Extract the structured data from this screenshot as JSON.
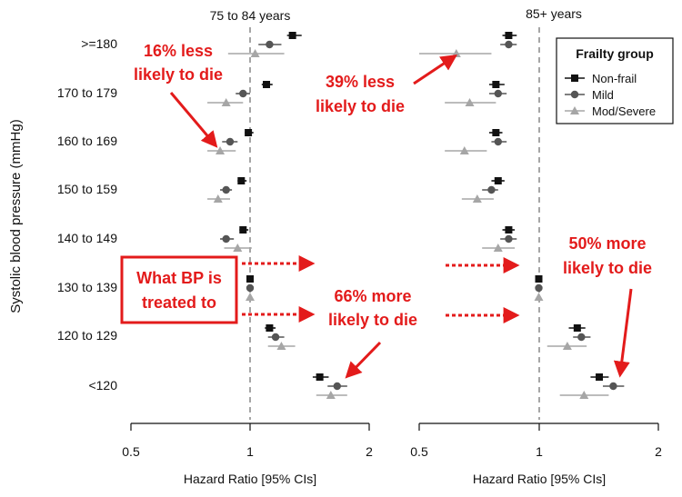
{
  "chart_data": {
    "type": "forest",
    "ylabel": "Systolic blood pressure (mmHg)",
    "categories": [
      ">=180",
      "170 to 179",
      "160 to 169",
      "150 to 159",
      "140 to 149",
      "130 to 139",
      "120 to 129",
      "<120"
    ],
    "x_scale": "log",
    "xlim": [
      0.5,
      2
    ],
    "x_ticks": [
      "0.5",
      "1",
      "2"
    ],
    "reference_line": 1,
    "legend": {
      "title": "Frailty group",
      "position": "top-right",
      "entries": [
        {
          "name": "Non-frail",
          "color": "#111111",
          "marker": "square"
        },
        {
          "name": "Mild",
          "color": "#555555",
          "marker": "circle"
        },
        {
          "name": "Mod/Severe",
          "color": "#a6a6a6",
          "marker": "triangle"
        }
      ]
    },
    "panels": [
      {
        "title": "75 to 84 years",
        "xlabel": "Hazard Ratio [95% CIs]",
        "series": [
          {
            "name": "Non-frail",
            "values": [
              1.28,
              1.1,
              0.99,
              0.95,
              0.96,
              1.0,
              1.12,
              1.5
            ],
            "ci": [
              [
                1.24,
                1.35
              ],
              [
                1.07,
                1.14
              ],
              [
                0.97,
                1.02
              ],
              [
                0.93,
                0.98
              ],
              [
                0.94,
                0.99
              ],
              [
                1.0,
                1.0
              ],
              [
                1.09,
                1.16
              ],
              [
                1.44,
                1.58
              ]
            ]
          },
          {
            "name": "Mild",
            "values": [
              1.12,
              0.96,
              0.89,
              0.87,
              0.87,
              1.0,
              1.16,
              1.66
            ],
            "ci": [
              [
                1.05,
                1.2
              ],
              [
                0.92,
                1.0
              ],
              [
                0.85,
                0.93
              ],
              [
                0.84,
                0.9
              ],
              [
                0.84,
                0.91
              ],
              [
                1.0,
                1.0
              ],
              [
                1.11,
                1.22
              ],
              [
                1.57,
                1.76
              ]
            ]
          },
          {
            "name": "Mod/Severe",
            "values": [
              1.03,
              0.87,
              0.84,
              0.83,
              0.93,
              1.0,
              1.2,
              1.6
            ],
            "ci": [
              [
                0.88,
                1.22
              ],
              [
                0.78,
                0.96
              ],
              [
                0.78,
                0.92
              ],
              [
                0.78,
                0.89
              ],
              [
                0.86,
                1.01
              ],
              [
                1.0,
                1.0
              ],
              [
                1.11,
                1.3
              ],
              [
                1.47,
                1.76
              ]
            ]
          }
        ]
      },
      {
        "title": "85+ years",
        "xlabel": "Hazard Ratio [95% CIs]",
        "series": [
          {
            "name": "Non-frail",
            "values": [
              0.84,
              0.78,
              0.78,
              0.79,
              0.84,
              1.0,
              1.25,
              1.42
            ],
            "ci": [
              [
                0.81,
                0.88
              ],
              [
                0.75,
                0.82
              ],
              [
                0.75,
                0.81
              ],
              [
                0.76,
                0.82
              ],
              [
                0.81,
                0.87
              ],
              [
                1.0,
                1.0
              ],
              [
                1.19,
                1.31
              ],
              [
                1.35,
                1.5
              ]
            ]
          },
          {
            "name": "Mild",
            "values": [
              0.84,
              0.79,
              0.79,
              0.76,
              0.84,
              1.0,
              1.28,
              1.54
            ],
            "ci": [
              [
                0.8,
                0.88
              ],
              [
                0.75,
                0.83
              ],
              [
                0.76,
                0.83
              ],
              [
                0.72,
                0.79
              ],
              [
                0.8,
                0.88
              ],
              [
                1.0,
                1.0
              ],
              [
                1.22,
                1.35
              ],
              [
                1.45,
                1.64
              ]
            ]
          },
          {
            "name": "Mod/Severe",
            "values": [
              0.62,
              0.67,
              0.65,
              0.7,
              0.79,
              1.0,
              1.18,
              1.3
            ],
            "ci": [
              [
                0.5,
                0.76
              ],
              [
                0.58,
                0.78
              ],
              [
                0.58,
                0.74
              ],
              [
                0.64,
                0.77
              ],
              [
                0.72,
                0.87
              ],
              [
                1.0,
                1.0
              ],
              [
                1.05,
                1.32
              ],
              [
                1.13,
                1.5
              ]
            ]
          }
        ]
      }
    ],
    "annotations": [
      {
        "text_lines": [
          "16% less",
          "likely to die"
        ],
        "color": "#e31b1b"
      },
      {
        "text_lines": [
          "39% less",
          "likely to die"
        ],
        "color": "#e31b1b"
      },
      {
        "text_lines": [
          "66% more",
          "likely to die"
        ],
        "color": "#e31b1b"
      },
      {
        "text_lines": [
          "50% more",
          "likely to die"
        ],
        "color": "#e31b1b"
      },
      {
        "text_lines": [
          "What BP is",
          "treated to"
        ],
        "color": "#e31b1b",
        "boxed": true
      }
    ]
  }
}
